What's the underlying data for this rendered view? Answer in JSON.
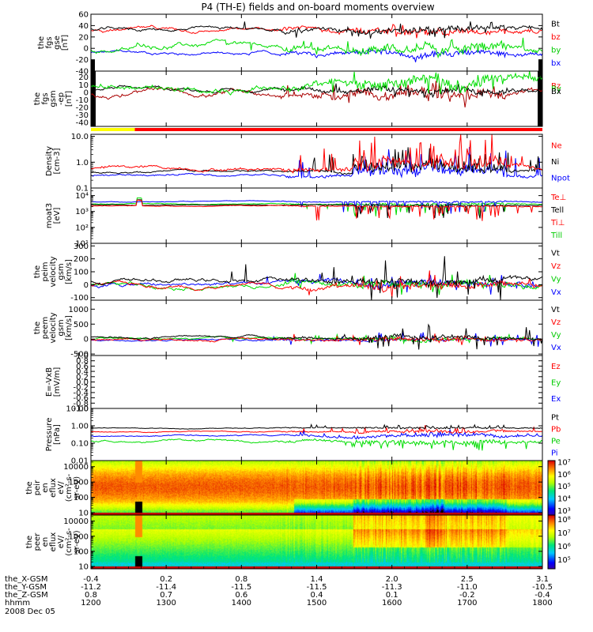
{
  "title": "P4 (TH-E) fields and on-board moments overview",
  "panels": [
    {
      "id": "fgs_gse",
      "label": [
        "the",
        "fgs",
        "gse",
        "[nT]"
      ],
      "scale": "lin",
      "ylim": [
        -40,
        60
      ],
      "ticks": [
        {
          "v": 60,
          "t": "60"
        },
        {
          "v": 40,
          "t": "40"
        },
        {
          "v": 20,
          "t": "20"
        },
        {
          "v": 0,
          "t": "0"
        },
        {
          "v": -20,
          "t": "-20"
        },
        {
          "v": -40,
          "t": "-40"
        }
      ],
      "legend": [
        {
          "t": "Bt",
          "c": "#000000"
        },
        {
          "t": "bz",
          "c": "#ff0000"
        },
        {
          "t": "by",
          "c": "#00cc00"
        },
        {
          "t": "bx",
          "c": "#0000ff"
        }
      ],
      "series": [
        {
          "name": "bx",
          "color": "#0000ff",
          "base": -8,
          "amp": 4,
          "spike": 6,
          "smin": -40,
          "smax": 60
        },
        {
          "name": "by",
          "color": "#00dd00",
          "base": -2,
          "amp": 6,
          "spike": 14,
          "smin": -40,
          "smax": 60
        },
        {
          "name": "bz",
          "color": "#ff0000",
          "base": 32,
          "amp": 4,
          "spike": 14,
          "smin": -40,
          "smax": 60
        },
        {
          "name": "Bt",
          "color": "#000000",
          "base": 34,
          "amp": 4,
          "spike": 14,
          "smin": -40,
          "smax": 60
        }
      ]
    },
    {
      "id": "fgs_gsm",
      "label": [
        "the",
        "fgs",
        "gsm",
        "-ep",
        "[nT]"
      ],
      "scale": "lin",
      "ylim": [
        -45,
        28
      ],
      "ticks": [
        {
          "v": 20,
          "t": "20"
        },
        {
          "v": 10,
          "t": "10"
        },
        {
          "v": 0,
          "t": "0"
        },
        {
          "v": -10,
          "t": "-10"
        },
        {
          "v": -20,
          "t": "-20"
        },
        {
          "v": -30,
          "t": "-30"
        },
        {
          "v": -40,
          "t": "-40"
        }
      ],
      "legend": [
        {
          "t": "Bz",
          "c": "#ff0000"
        },
        {
          "t": "By",
          "c": "#00cc00"
        },
        {
          "t": "Bx",
          "c": "#000000"
        }
      ],
      "legend_overlap": true,
      "series": [
        {
          "name": "Bz",
          "color": "#aa0000",
          "base": -2,
          "amp": 5,
          "spike": 18,
          "smin": -45,
          "smax": 28
        },
        {
          "name": "Bx",
          "color": "#000000",
          "base": 4,
          "amp": 3,
          "spike": 10,
          "smin": -45,
          "smax": 28
        },
        {
          "name": "By",
          "color": "#00dd00",
          "base": 9,
          "amp": 6,
          "spike": 14,
          "smin": -45,
          "smax": 28
        }
      ]
    },
    {
      "id": "density",
      "label": [
        "Density",
        "[cm-3]"
      ],
      "scale": "log",
      "ylim": [
        0.1,
        12
      ],
      "ticks": [
        {
          "v": 10,
          "t": "10.0"
        },
        {
          "v": 1,
          "t": "1.0"
        },
        {
          "v": 0.1,
          "t": "0.1"
        }
      ],
      "legend": [
        {
          "t": "Ne",
          "c": "#ff0000"
        },
        {
          "t": "Ni",
          "c": "#000000"
        },
        {
          "t": "Npot",
          "c": "#0000ff"
        }
      ],
      "series": [
        {
          "name": "Npot",
          "color": "#0000ff",
          "base": 0.32,
          "amp": 0.15,
          "spike": 1.2,
          "smin": 0.1,
          "smax": 12
        },
        {
          "name": "Ni",
          "color": "#000000",
          "base": 0.42,
          "amp": 0.15,
          "spike": 1.2,
          "smin": 0.1,
          "smax": 12
        },
        {
          "name": "Ne",
          "color": "#ff0000",
          "base": 0.6,
          "amp": 0.25,
          "spike": 1.6,
          "smin": 0.1,
          "smax": 12
        }
      ]
    },
    {
      "id": "temp",
      "label": [
        "moat3",
        "[eV]"
      ],
      "scale": "log",
      "ylim": [
        10,
        30000
      ],
      "ticks": [
        {
          "v": 10000,
          "t": "10⁴"
        },
        {
          "v": 1000,
          "t": "10³"
        },
        {
          "v": 100,
          "t": "10²"
        },
        {
          "v": 10,
          "t": "10¹"
        }
      ],
      "legend": [
        {
          "t": "Te⊥",
          "c": "#ff0000"
        },
        {
          "t": "Tell",
          "c": "#000000"
        },
        {
          "t": "Ti⊥",
          "c": "#ff0000"
        },
        {
          "t": "Till",
          "c": "#00cc00"
        }
      ],
      "series": [
        {
          "name": "Till",
          "color": "#00dd00",
          "base": 3000,
          "amp": 0.1,
          "spike": -1.3,
          "smin": 10,
          "smax": 30000
        },
        {
          "name": "Ti⊥",
          "color": "#0000ff",
          "base": 4200,
          "amp": 0.08,
          "spike": -1.2,
          "smin": 10,
          "smax": 30000
        },
        {
          "name": "Tell",
          "color": "#000000",
          "base": 2600,
          "amp": 0.08,
          "spike": -1.4,
          "smin": 10,
          "smax": 30000
        },
        {
          "name": "Te⊥",
          "color": "#ff0000",
          "base": 2200,
          "amp": 0.08,
          "spike": -1.6,
          "smin": 10,
          "smax": 30000
        }
      ]
    },
    {
      "id": "peim_v",
      "label": [
        "the",
        "peim",
        "velocity",
        "gsm",
        "[km/s]"
      ],
      "scale": "lin",
      "ylim": [
        -120,
        320
      ],
      "ticks": [
        {
          "v": 300,
          "t": "300"
        },
        {
          "v": 200,
          "t": "200"
        },
        {
          "v": 100,
          "t": "100"
        },
        {
          "v": 0,
          "t": "0"
        },
        {
          "v": -100,
          "t": "-100"
        }
      ],
      "legend": [
        {
          "t": "Vt",
          "c": "#000000"
        },
        {
          "t": "Vz",
          "c": "#ff0000"
        },
        {
          "t": "Vy",
          "c": "#00cc00"
        },
        {
          "t": "Vx",
          "c": "#0000ff"
        }
      ],
      "series": [
        {
          "name": "Vx",
          "color": "#0000ff",
          "base": 0,
          "amp": 20,
          "spike": 80,
          "smin": -120,
          "smax": 320
        },
        {
          "name": "Vy",
          "color": "#00dd00",
          "base": 0,
          "amp": 20,
          "spike": 80,
          "smin": -120,
          "smax": 320
        },
        {
          "name": "Vz",
          "color": "#ff0000",
          "base": -5,
          "amp": 20,
          "spike": 90,
          "smin": -120,
          "smax": 320
        },
        {
          "name": "Vt",
          "color": "#000000",
          "base": 30,
          "amp": 20,
          "spike": 200,
          "smin": -120,
          "smax": 320
        }
      ]
    },
    {
      "id": "peem_v",
      "label": [
        "the",
        "peem",
        "velocity",
        "gsm",
        "[km/s]"
      ],
      "scale": "lin",
      "ylim": [
        -550,
        1300
      ],
      "ticks": [
        {
          "v": 1000,
          "t": "1000"
        },
        {
          "v": 500,
          "t": "500"
        },
        {
          "v": 0,
          "t": "0"
        },
        {
          "v": -500,
          "t": "-500"
        }
      ],
      "legend": [
        {
          "t": "Vt",
          "c": "#000000"
        },
        {
          "t": "Vz",
          "c": "#ff0000"
        },
        {
          "t": "Vy",
          "c": "#00cc00"
        },
        {
          "t": "Vx",
          "c": "#0000ff"
        }
      ],
      "series": [
        {
          "name": "Vx",
          "color": "#0000ff",
          "base": -40,
          "amp": 40,
          "spike": 250,
          "smin": -550,
          "smax": 1300
        },
        {
          "name": "Vy",
          "color": "#00dd00",
          "base": 0,
          "amp": 40,
          "spike": 150,
          "smin": -550,
          "smax": 1300
        },
        {
          "name": "Vz",
          "color": "#ff0000",
          "base": -20,
          "amp": 50,
          "spike": 200,
          "smin": -550,
          "smax": 1300
        },
        {
          "name": "Vt",
          "color": "#000000",
          "base": 60,
          "amp": 50,
          "spike": 450,
          "smin": -550,
          "smax": 1300
        }
      ]
    },
    {
      "id": "efield",
      "label": [
        "E=-VxB",
        "[mV/m]"
      ],
      "scale": "lin",
      "ylim": [
        -1,
        1
      ],
      "ticks": [
        {
          "v": 1,
          "t": "1.0"
        },
        {
          "v": 0.8,
          "t": "0.8"
        },
        {
          "v": 0.6,
          "t": "0.6"
        },
        {
          "v": 0.4,
          "t": "0.4"
        },
        {
          "v": 0.2,
          "t": "0.2"
        },
        {
          "v": 0,
          "t": "0.0"
        },
        {
          "v": -0.2,
          "t": "-0.2"
        },
        {
          "v": -0.4,
          "t": "-0.4"
        },
        {
          "v": -0.6,
          "t": "-0.6"
        },
        {
          "v": -0.8,
          "t": "-0.8"
        },
        {
          "v": -1,
          "t": "-1.0"
        }
      ],
      "legend": [
        {
          "t": "Ez",
          "c": "#ff0000"
        },
        {
          "t": "Ey",
          "c": "#00cc00"
        },
        {
          "t": "Ex",
          "c": "#0000ff"
        }
      ],
      "series": []
    },
    {
      "id": "pressure",
      "label": [
        "Pressure",
        "[nPa]"
      ],
      "scale": "log",
      "ylim": [
        0.01,
        10
      ],
      "ticks": [
        {
          "v": 10,
          "t": "10.00"
        },
        {
          "v": 1,
          "t": "1.00"
        },
        {
          "v": 0.1,
          "t": "0.10"
        },
        {
          "v": 0.01,
          "t": "0.01"
        }
      ],
      "legend": [
        {
          "t": "Pt",
          "c": "#000000"
        },
        {
          "t": "Pb",
          "c": "#ff0000"
        },
        {
          "t": "Pe",
          "c": "#00cc00"
        },
        {
          "t": "Pi",
          "c": "#0000ff"
        }
      ],
      "series": [
        {
          "name": "Pe",
          "color": "#00dd00",
          "base": 0.13,
          "amp": 0.2,
          "spike": -0.8,
          "smin": 0.01,
          "smax": 10
        },
        {
          "name": "Pi",
          "color": "#0000ff",
          "base": 0.25,
          "amp": 0.15,
          "spike": 0.4,
          "smin": 0.01,
          "smax": 10
        },
        {
          "name": "Pb",
          "color": "#ff0000",
          "base": 0.45,
          "amp": 0.12,
          "spike": 0.5,
          "smin": 0.01,
          "smax": 10
        },
        {
          "name": "Pt",
          "color": "#000000",
          "base": 0.75,
          "amp": 0.08,
          "spike": 0.3,
          "smin": 0.01,
          "smax": 10
        }
      ]
    },
    {
      "id": "peir",
      "label": [
        "the",
        "peir",
        "en",
        "eflux",
        "eV/",
        "(cm²-s-",
        "sr-eV)"
      ],
      "scale": "log",
      "ylim": [
        7,
        25000
      ],
      "ticks": [
        {
          "v": 10000,
          "t": "10000"
        },
        {
          "v": 1000,
          "t": "1000"
        },
        {
          "v": 100,
          "t": "100"
        },
        {
          "v": 10,
          "t": "10"
        }
      ],
      "colorbar": {
        "ticks": [
          {
            "v": 7,
            "t": "10⁷"
          },
          {
            "v": 6,
            "t": "10⁶"
          },
          {
            "v": 5,
            "t": "10⁵"
          },
          {
            "v": 4,
            "t": "10⁴"
          },
          {
            "v": 3,
            "t": "10³"
          }
        ],
        "min": 2.6,
        "max": 7.1
      },
      "series": []
    },
    {
      "id": "peer",
      "label": [
        "the",
        "peer",
        "en",
        "eflux",
        "eV/",
        "(cm²-s-",
        "sr-eV)"
      ],
      "scale": "log",
      "ylim": [
        7,
        25000
      ],
      "ticks": [
        {
          "v": 10000,
          "t": "10000"
        },
        {
          "v": 1000,
          "t": "1000"
        },
        {
          "v": 100,
          "t": "100"
        },
        {
          "v": 10,
          "t": "10"
        }
      ],
      "colorbar": {
        "ticks": [
          {
            "v": 8,
            "t": "10⁸"
          },
          {
            "v": 7,
            "t": "10⁷"
          },
          {
            "v": 6,
            "t": "10⁶"
          },
          {
            "v": 5,
            "t": "10⁵"
          }
        ],
        "min": 4.3,
        "max": 8.3
      },
      "series": []
    }
  ],
  "chart_data": {
    "type": "line",
    "title": "P4 (TH-E) fields and on-board moments overview",
    "x": [
      "1200",
      "1300",
      "1400",
      "1500",
      "1600",
      "1700",
      "1800"
    ],
    "xlabel": "hhmm",
    "date": "2008 Dec 05",
    "xlim": [
      "1200",
      "1800"
    ],
    "ephemeris": [
      {
        "label": "the_X-GSM",
        "values": [
          "-0.4",
          "0.2",
          "0.8",
          "1.4",
          "2.0",
          "2.5",
          "3.1"
        ]
      },
      {
        "label": "the_Y-GSM",
        "values": [
          "-11.2",
          "-11.4",
          "-11.5",
          "-11.5",
          "-11.3",
          "-11.0",
          "-10.5"
        ]
      },
      {
        "label": "the_Z-GSM",
        "values": [
          "0.8",
          "0.7",
          "0.6",
          "0.4",
          "0.1",
          "-0.2",
          "-0.4"
        ]
      },
      {
        "label": "hhmm",
        "values": [
          "1200",
          "1300",
          "1400",
          "1500",
          "1600",
          "1700",
          "1800"
        ]
      }
    ],
    "mode_bar": [
      {
        "from": "1200",
        "to": "1235",
        "color": "#ffff00"
      },
      {
        "from": "1235",
        "to": "1800",
        "color": "#ff0000"
      }
    ]
  }
}
